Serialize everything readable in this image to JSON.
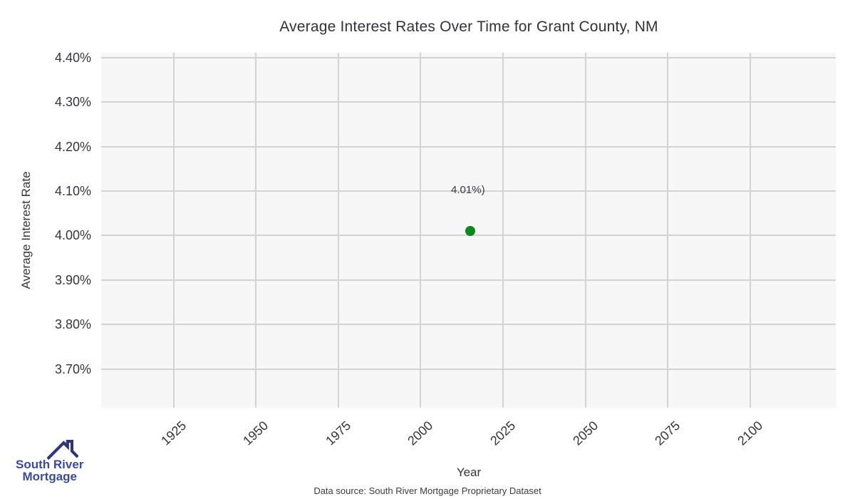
{
  "chart_data": {
    "type": "scatter",
    "title": "Average Interest Rates Over Time for Grant County, NM",
    "xlabel": "Year",
    "ylabel": "Average Interest Rate",
    "xlim": [
      1903,
      2126
    ],
    "ylim": [
      3.613,
      4.411
    ],
    "grid": true,
    "legend_position": "none",
    "plot_background": "#f7f7f7",
    "grid_color": "#d3d3d3",
    "xticks": [
      {
        "value": 1925,
        "label": "1925"
      },
      {
        "value": 1950,
        "label": "1950"
      },
      {
        "value": 1975,
        "label": "1975"
      },
      {
        "value": 2000,
        "label": "2000"
      },
      {
        "value": 2025,
        "label": "2025"
      },
      {
        "value": 2050,
        "label": "2050"
      },
      {
        "value": 2075,
        "label": "2075"
      },
      {
        "value": 2100,
        "label": "2100"
      }
    ],
    "yticks": [
      {
        "value": 4.4,
        "label": "4.40%"
      },
      {
        "value": 4.3,
        "label": "4.30%"
      },
      {
        "value": 4.2,
        "label": "4.20%"
      },
      {
        "value": 4.1,
        "label": "4.10%"
      },
      {
        "value": 4.0,
        "label": "4.00%"
      },
      {
        "value": 3.9,
        "label": "3.90%"
      },
      {
        "value": 3.8,
        "label": "3.80%"
      },
      {
        "value": 3.7,
        "label": "3.70%"
      }
    ],
    "points": [
      {
        "x": 2015,
        "y": 4.01,
        "annotation": "4.01%)",
        "color": "#0a8a1c"
      }
    ]
  },
  "footer": {
    "source_text": "Data source: South River Mortgage Proprietary Dataset"
  },
  "logo": {
    "line1": "South River",
    "line2": "Mortgage",
    "text_color": "#3a4a9e",
    "roof_color": "#2d3576"
  }
}
